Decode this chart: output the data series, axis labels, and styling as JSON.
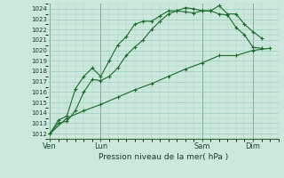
{
  "xlabel": "Pression niveau de la mer( hPa )",
  "bg_color": "#cce8dc",
  "grid_color": "#99ccbb",
  "line_color": "#1a6b2a",
  "ylim": [
    1011.5,
    1024.5
  ],
  "ytick_min": 1012,
  "ytick_max": 1024,
  "day_labels": [
    "Ven",
    "Lun",
    "Sam",
    "Dim"
  ],
  "day_positions": [
    0,
    3,
    9,
    12
  ],
  "xlim": [
    -0.1,
    13.5
  ],
  "line1_x": [
    0,
    0.5,
    1,
    1.5,
    2,
    2.5,
    3,
    3.5,
    4,
    4.5,
    5,
    5.5,
    6,
    6.5,
    7,
    7.5,
    8,
    8.5,
    9,
    9.5,
    10,
    10.5,
    11,
    11.5,
    12,
    12.5
  ],
  "line1_y": [
    1012,
    1013.3,
    1013.7,
    1016.3,
    1017.5,
    1018.3,
    1017.5,
    1019.0,
    1020.5,
    1021.3,
    1022.5,
    1022.8,
    1022.8,
    1023.3,
    1023.8,
    1023.8,
    1023.7,
    1023.6,
    1023.8,
    1023.8,
    1024.3,
    1023.5,
    1023.5,
    1022.5,
    1021.8,
    1021.2
  ],
  "line2_x": [
    0,
    0.5,
    1,
    1.5,
    2,
    2.5,
    3,
    3.5,
    4,
    4.5,
    5,
    5.5,
    6,
    6.5,
    7,
    7.5,
    8,
    8.5,
    9,
    9.5,
    10,
    10.5,
    11,
    11.5,
    12,
    12.5
  ],
  "line2_y": [
    1012,
    1013.0,
    1013.2,
    1014.2,
    1016.0,
    1017.2,
    1017.1,
    1017.5,
    1018.3,
    1019.5,
    1020.3,
    1021.0,
    1022.0,
    1022.8,
    1023.5,
    1023.8,
    1024.1,
    1024.0,
    1023.8,
    1023.8,
    1023.5,
    1023.4,
    1022.2,
    1021.5,
    1020.3,
    1020.2
  ],
  "line3_x": [
    0,
    1,
    2,
    3,
    4,
    5,
    6,
    7,
    8,
    9,
    10,
    11,
    12,
    13
  ],
  "line3_y": [
    1012,
    1013.5,
    1014.2,
    1014.8,
    1015.5,
    1016.2,
    1016.8,
    1017.5,
    1018.2,
    1018.8,
    1019.5,
    1019.5,
    1020.0,
    1020.2
  ]
}
